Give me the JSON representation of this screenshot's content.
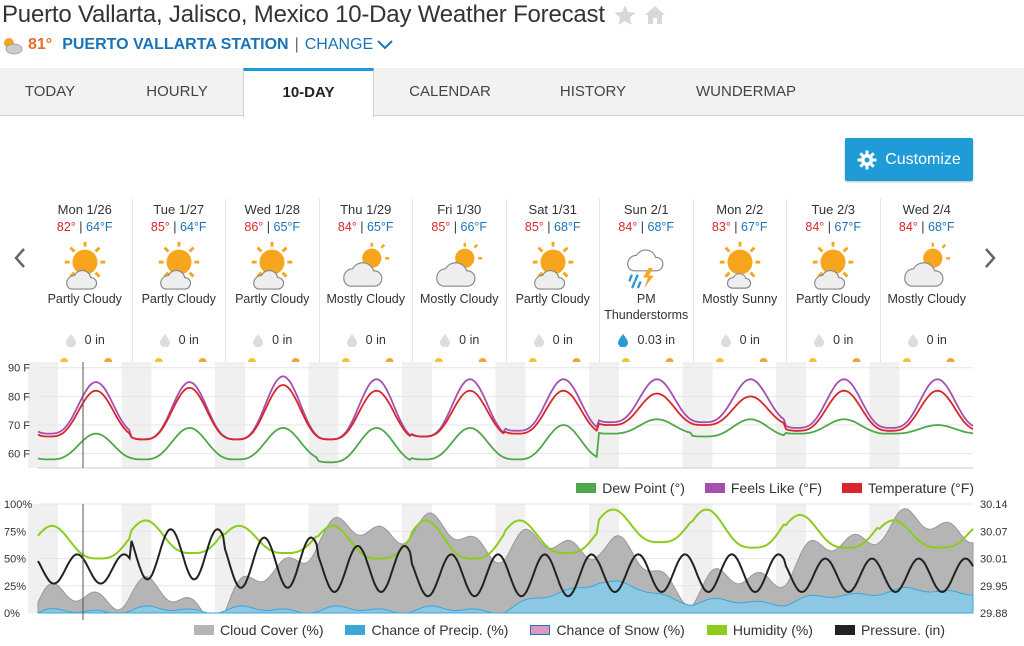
{
  "page": {
    "title": "Puerto Vallarta, Jalisco, Mexico 10-Day Weather Forecast",
    "current_temp": "81°",
    "station": "PUERTO VALLARTA STATION",
    "separator": "|",
    "change_label": "CHANGE",
    "customize_label": "Customize"
  },
  "tabs": [
    {
      "label": "TODAY"
    },
    {
      "label": "HOURLY"
    },
    {
      "label": "10-DAY",
      "active": true
    },
    {
      "label": "CALENDAR"
    },
    {
      "label": "HISTORY"
    },
    {
      "label": "WUNDERMAP"
    }
  ],
  "days": [
    {
      "date": "Mon 1/26",
      "hi": "82°",
      "lo": "64°F",
      "sep": "|",
      "icon": "partly-cloudy-icon",
      "condition": "Partly Cloudy",
      "precip": "0 in"
    },
    {
      "date": "Tue 1/27",
      "hi": "85°",
      "lo": "64°F",
      "sep": "|",
      "icon": "partly-cloudy-icon",
      "condition": "Partly Cloudy",
      "precip": "0 in"
    },
    {
      "date": "Wed 1/28",
      "hi": "86°",
      "lo": "65°F",
      "sep": "|",
      "icon": "partly-cloudy-icon",
      "condition": "Partly Cloudy",
      "precip": "0 in"
    },
    {
      "date": "Thu 1/29",
      "hi": "84°",
      "lo": "65°F",
      "sep": "|",
      "icon": "mostly-cloudy-icon",
      "condition": "Mostly Cloudy",
      "precip": "0 in"
    },
    {
      "date": "Fri 1/30",
      "hi": "85°",
      "lo": "66°F",
      "sep": "|",
      "icon": "mostly-cloudy-icon",
      "condition": "Mostly Cloudy",
      "precip": "0 in"
    },
    {
      "date": "Sat 1/31",
      "hi": "85°",
      "lo": "68°F",
      "sep": "|",
      "icon": "partly-cloudy-icon",
      "condition": "Partly Cloudy",
      "precip": "0 in"
    },
    {
      "date": "Sun 2/1",
      "hi": "84°",
      "lo": "68°F",
      "sep": "|",
      "icon": "thunderstorm-icon",
      "condition": "PM Thunderstorms",
      "precip": "0.03 in"
    },
    {
      "date": "Mon 2/2",
      "hi": "83°",
      "lo": "67°F",
      "sep": "|",
      "icon": "mostly-sunny-icon",
      "condition": "Mostly Sunny",
      "precip": "0 in"
    },
    {
      "date": "Tue 2/3",
      "hi": "84°",
      "lo": "67°F",
      "sep": "|",
      "icon": "partly-cloudy-icon",
      "condition": "Partly Cloudy",
      "precip": "0 in"
    },
    {
      "date": "Wed 2/4",
      "hi": "84°",
      "lo": "68°F",
      "sep": "|",
      "icon": "mostly-cloudy-icon",
      "condition": "Mostly Cloudy",
      "precip": "0 in"
    }
  ],
  "colors": {
    "temperature": "#d9262a",
    "feels_like": "#a64fb0",
    "dew_point": "#4ea84a",
    "cloud_cover": "#b5b5b5",
    "chance_precip": "#8cc8e3",
    "chance_snow": "#d99ac6",
    "humidity": "#8ccc1c",
    "pressure": "#222222",
    "accent": "#1f9bd7"
  },
  "chart_data": [
    {
      "type": "line",
      "x": [
        "Mon 1/26",
        "Tue 1/27",
        "Wed 1/28",
        "Thu 1/29",
        "Fri 1/30",
        "Sat 1/31",
        "Sun 2/1",
        "Mon 2/2",
        "Tue 2/3",
        "Wed 2/4"
      ],
      "ylim": [
        55,
        92
      ],
      "yticks": [
        "90 F",
        "80 F",
        "70 F",
        "60 F"
      ],
      "ytick_values": [
        90,
        80,
        70,
        60
      ],
      "legend": [
        "Dew Point (°)",
        "Feels Like (°F)",
        "Temperature (°F)"
      ],
      "series": [
        {
          "name": "Temperature (°F)",
          "hi": [
            82,
            83,
            84,
            82,
            82,
            82,
            81,
            80,
            82,
            82
          ],
          "lo": [
            66,
            65,
            65,
            65,
            66,
            67,
            70,
            70,
            68,
            68
          ]
        },
        {
          "name": "Feels Like (°F)",
          "hi": [
            85,
            85,
            87,
            86,
            86,
            86,
            86,
            86,
            86,
            86
          ],
          "lo": [
            67,
            65,
            65,
            65,
            66,
            68,
            71,
            71,
            69,
            69
          ]
        },
        {
          "name": "Dew Point (°)",
          "hi": [
            67,
            69,
            69,
            69,
            69,
            70,
            72,
            72,
            72,
            70
          ],
          "lo": [
            58,
            58,
            58,
            57,
            58,
            58,
            67,
            66,
            67,
            67
          ]
        }
      ]
    },
    {
      "type": "area",
      "x": [
        "Mon 1/26",
        "Tue 1/27",
        "Wed 1/28",
        "Thu 1/29",
        "Fri 1/30",
        "Sat 1/31",
        "Sun 2/1",
        "Mon 2/2",
        "Tue 2/3",
        "Wed 2/4"
      ],
      "ylim": [
        0,
        100
      ],
      "yticks_left": [
        "100%",
        "75%",
        "50%",
        "25%",
        "0%"
      ],
      "yticks_right": [
        "30.14",
        "30.07",
        "30.01",
        "29.95",
        "29.88"
      ],
      "legend": [
        "Cloud Cover (%)",
        "Chance of Precip. (%)",
        "Chance of Snow (%)",
        "Humidity (%)",
        "Pressure. (in)"
      ],
      "series": [
        {
          "name": "Cloud Cover (%)",
          "values": [
            10,
            20,
            5,
            70,
            80,
            60,
            65,
            20,
            40,
            80
          ]
        },
        {
          "name": "Chance of Precip. (%)",
          "values": [
            0,
            3,
            3,
            3,
            3,
            3,
            30,
            10,
            10,
            20
          ]
        },
        {
          "name": "Chance of Snow (%)",
          "values": [
            0,
            0,
            0,
            0,
            0,
            0,
            0,
            0,
            0,
            0
          ]
        },
        {
          "name": "Humidity (%)",
          "hi": [
            80,
            85,
            80,
            80,
            85,
            85,
            95,
            95,
            90,
            85
          ],
          "lo": [
            50,
            55,
            55,
            50,
            50,
            55,
            65,
            60,
            60,
            60
          ]
        },
        {
          "name": "Pressure. (in)",
          "hi": [
            30.02,
            30.08,
            30.06,
            30.04,
            30.02,
            30.02,
            30.02,
            30.02,
            30.01,
            30.01
          ],
          "lo": [
            29.95,
            29.96,
            29.94,
            29.93,
            29.92,
            29.92,
            29.93,
            29.93,
            29.93,
            29.93
          ]
        }
      ]
    }
  ]
}
